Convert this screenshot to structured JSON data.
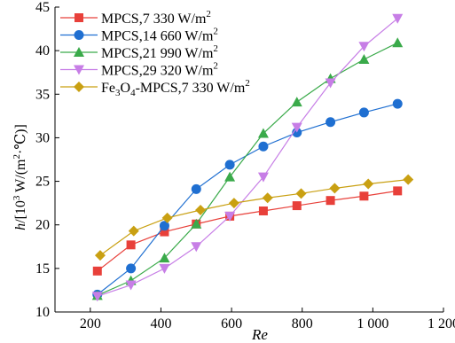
{
  "chart_data": {
    "type": "line",
    "xlabel": "Re",
    "ylabel_parts": [
      "h",
      "/[10",
      "3",
      " W/(m",
      "2",
      "·℃)]"
    ],
    "xlim": [
      100,
      1200
    ],
    "ylim": [
      10,
      45
    ],
    "xticks": [
      200,
      400,
      600,
      800,
      1000,
      1200
    ],
    "xtick_labels": [
      "200",
      "400",
      "600",
      "800",
      "1 000",
      "1 200"
    ],
    "yticks": [
      10,
      15,
      20,
      25,
      30,
      35,
      40,
      45
    ],
    "ytick_labels": [
      "10",
      "15",
      "20",
      "25",
      "30",
      "35",
      "40",
      "45"
    ],
    "grid": false,
    "legend_position": "top-left",
    "series": [
      {
        "name": "MPCS,7 330 W/m2",
        "label_parts": [
          "MPCS,7 330 W/m",
          "2",
          ""
        ],
        "color": "#e8403a",
        "marker": "square",
        "x": [
          220,
          315,
          410,
          500,
          595,
          690,
          785,
          880,
          975,
          1070
        ],
        "y": [
          14.7,
          17.7,
          19.2,
          20.1,
          21.0,
          21.6,
          22.2,
          22.8,
          23.3,
          23.9
        ]
      },
      {
        "name": "MPCS,14 660 W/m2",
        "label_parts": [
          "MPCS,14 660 W/m",
          "2",
          ""
        ],
        "color": "#1f6fd1",
        "marker": "circle",
        "x": [
          220,
          315,
          410,
          500,
          595,
          690,
          785,
          880,
          975,
          1070
        ],
        "y": [
          12.0,
          15.0,
          19.9,
          24.1,
          26.9,
          29.0,
          30.6,
          31.8,
          32.9,
          33.9
        ]
      },
      {
        "name": "MPCS,21 990 W/m2",
        "label_parts": [
          "MPCS,21 990 W/m",
          "2",
          ""
        ],
        "color": "#3aaa4a",
        "marker": "triangle-up",
        "x": [
          220,
          315,
          410,
          500,
          595,
          690,
          785,
          880,
          975,
          1070
        ],
        "y": [
          11.9,
          13.6,
          16.2,
          20.1,
          25.5,
          30.5,
          34.1,
          36.8,
          39.0,
          40.9
        ]
      },
      {
        "name": "MPCS,29 320 W/m2",
        "label_parts": [
          "MPCS,29 320 W/m",
          "2",
          ""
        ],
        "color": "#c77ee6",
        "marker": "triangle-down",
        "x": [
          220,
          315,
          410,
          500,
          595,
          690,
          785,
          880,
          975,
          1070
        ],
        "y": [
          11.8,
          13.1,
          15.0,
          17.5,
          21.0,
          25.5,
          31.2,
          36.3,
          40.5,
          43.7
        ]
      },
      {
        "name": "Fe3O4-MPCS,7 330 W/m2",
        "label_parts": [
          "Fe",
          "3",
          "O",
          "4",
          "-MPCS,7 330 W/m",
          "2",
          ""
        ],
        "color": "#c9a012",
        "marker": "diamond",
        "x": [
          228,
          323,
          418,
          512,
          607,
          702,
          797,
          892,
          987,
          1100
        ],
        "y": [
          16.5,
          19.3,
          20.8,
          21.7,
          22.5,
          23.1,
          23.6,
          24.2,
          24.7,
          25.2
        ]
      }
    ]
  }
}
